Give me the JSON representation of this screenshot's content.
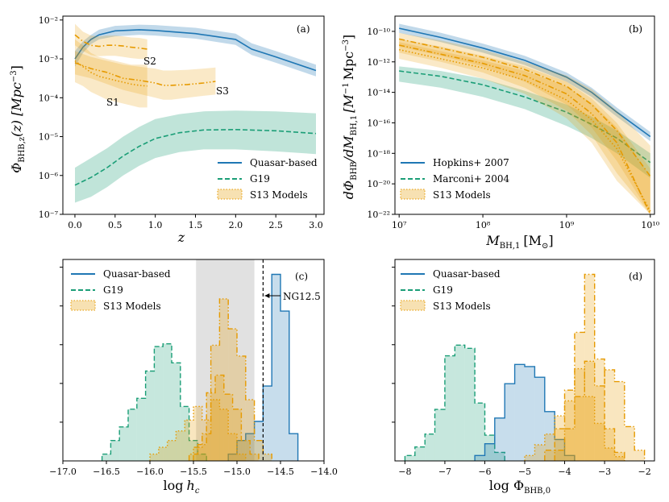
{
  "colors": {
    "blue": "#1f77b4",
    "green": "#1b9e77",
    "orange": "#e69a00",
    "gray": "#d9d9d9"
  },
  "chart_data": [
    {
      "id": "a",
      "type": "line",
      "panel_label": "(a)",
      "xlabel": "z",
      "ylabel": "Φ_BHB,z(z) [Mpc^-3]",
      "ylabel_main": "Φ",
      "ylabel_sub": "BHB,z",
      "ylabel_rest": "(z) [Mpc",
      "ylabel_sup": "−3",
      "ylabel_close": "]",
      "xlim": [
        -0.15,
        3.1
      ],
      "ylim_log10": [
        -7,
        -1.9
      ],
      "xticks": [
        0,
        0.5,
        1,
        1.5,
        2,
        2.5,
        3
      ],
      "xtick_labels": [
        "0.0",
        "0.5",
        "1.0",
        "1.5",
        "2.0",
        "2.5",
        "3.0"
      ],
      "yticks_log10": [
        -7,
        -6,
        -5,
        -4,
        -3,
        -2
      ],
      "ytick_labels": [
        "10⁻⁷",
        "10⁻⁶",
        "10⁻⁵",
        "10⁻⁴",
        "10⁻³",
        "10⁻²"
      ],
      "legend": [
        "Quasar-based",
        "G19",
        "S13 Models"
      ],
      "annotations": [
        "S1",
        "S2",
        "S3"
      ],
      "series": [
        {
          "name": "Quasar-based",
          "color": "blue",
          "dash": "solid",
          "x": [
            0,
            0.1,
            0.2,
            0.3,
            0.5,
            0.8,
            1.0,
            1.5,
            2.0,
            2.2,
            2.5,
            3.0
          ],
          "y_log10": [
            -3.0,
            -2.7,
            -2.5,
            -2.38,
            -2.28,
            -2.25,
            -2.27,
            -2.35,
            -2.5,
            -2.75,
            -2.95,
            -3.3
          ],
          "band_lo": [
            -3.2,
            -2.85,
            -2.62,
            -2.5,
            -2.42,
            -2.38,
            -2.4,
            -2.48,
            -2.64,
            -2.9,
            -3.1,
            -3.45
          ],
          "band_hi": [
            -2.8,
            -2.55,
            -2.38,
            -2.25,
            -2.15,
            -2.12,
            -2.13,
            -2.2,
            -2.35,
            -2.6,
            -2.8,
            -3.15
          ]
        },
        {
          "name": "G19",
          "color": "green",
          "dash": "dashed",
          "x": [
            0,
            0.2,
            0.4,
            0.6,
            0.8,
            1.0,
            1.3,
            1.6,
            2.0,
            2.5,
            3.0
          ],
          "y_log10": [
            -6.25,
            -6.05,
            -5.8,
            -5.5,
            -5.25,
            -5.05,
            -4.9,
            -4.83,
            -4.82,
            -4.85,
            -4.92
          ],
          "band_lo": [
            -6.7,
            -6.55,
            -6.3,
            -6.0,
            -5.75,
            -5.55,
            -5.4,
            -5.33,
            -5.33,
            -5.38,
            -5.45
          ],
          "band_hi": [
            -5.8,
            -5.55,
            -5.3,
            -5.0,
            -4.75,
            -4.55,
            -4.42,
            -4.35,
            -4.33,
            -4.35,
            -4.4
          ]
        },
        {
          "name": "S1",
          "color": "orange",
          "dash": "dotted",
          "x": [
            0,
            0.1,
            0.2,
            0.3,
            0.4,
            0.5,
            0.6,
            0.7,
            0.8,
            0.9
          ],
          "y_log10": [
            -3.05,
            -3.2,
            -3.35,
            -3.45,
            -3.5,
            -3.55,
            -3.6,
            -3.65,
            -3.68,
            -3.7
          ],
          "band_lo": [
            -3.6,
            -3.7,
            -3.85,
            -3.95,
            -4.05,
            -4.1,
            -4.15,
            -4.2,
            -4.25,
            -4.25
          ],
          "band_hi": [
            -2.5,
            -2.65,
            -2.85,
            -2.95,
            -3.0,
            -3.05,
            -3.1,
            -3.15,
            -3.15,
            -3.15
          ]
        },
        {
          "name": "S2",
          "color": "orange",
          "dash": "dashdot",
          "x": [
            0,
            0.1,
            0.2,
            0.3,
            0.4,
            0.5,
            0.6,
            0.7,
            0.8,
            0.9
          ],
          "y_log10": [
            -2.38,
            -2.55,
            -2.65,
            -2.68,
            -2.65,
            -2.65,
            -2.67,
            -2.7,
            -2.72,
            -2.75
          ],
          "band_lo": [
            -2.65,
            -2.8,
            -2.9,
            -2.93,
            -2.92,
            -2.92,
            -2.95,
            -2.98,
            -3.0,
            -3.0
          ],
          "band_hi": [
            -2.1,
            -2.3,
            -2.4,
            -2.42,
            -2.4,
            -2.4,
            -2.42,
            -2.45,
            -2.46,
            -2.5
          ]
        },
        {
          "name": "S3",
          "color": "orange",
          "dash": "dashdotdot",
          "x": [
            0,
            0.2,
            0.4,
            0.6,
            0.8,
            1.0,
            1.1,
            1.2,
            1.4,
            1.6,
            1.75
          ],
          "y_log10": [
            -3.1,
            -3.25,
            -3.35,
            -3.5,
            -3.55,
            -3.62,
            -3.68,
            -3.68,
            -3.66,
            -3.62,
            -3.58
          ],
          "band_lo": [
            -3.4,
            -3.5,
            -3.65,
            -3.8,
            -3.9,
            -4.0,
            -4.05,
            -4.05,
            -4.0,
            -3.95,
            -3.92
          ],
          "band_hi": [
            -2.8,
            -2.95,
            -3.05,
            -3.15,
            -3.2,
            -3.25,
            -3.3,
            -3.3,
            -3.28,
            -3.25,
            -3.22
          ]
        }
      ]
    },
    {
      "id": "b",
      "type": "line",
      "panel_label": "(b)",
      "xlabel": "M_BH,1 [M_⊙]",
      "ylabel": "dΦ_BHB / dM_BH,1 [M_⊙^-1 Mpc^-3]",
      "xlabel_main": "M",
      "xlabel_sub": "BH,1",
      "xlabel_rest": "[M",
      "xlabel_sun": "⊙",
      "xlabel_close": "]",
      "ylabel_main": "dΦ",
      "ylabel_sub": "BHB",
      "ylabel_mid": "/dM",
      "ylabel_sub2": "BH,1",
      "ylabel_rest": "[M",
      "ylabel_sup": "−1",
      "ylabel_rest2": "Mpc",
      "ylabel_sup2": "−3",
      "ylabel_close": "]",
      "xlim_log10": [
        6.95,
        10.05
      ],
      "ylim_log10": [
        -22,
        -9
      ],
      "xticks_log10": [
        7,
        8,
        9,
        10
      ],
      "xtick_labels": [
        "10⁷",
        "10⁸",
        "10⁹",
        "10¹⁰"
      ],
      "yticks_log10": [
        -22,
        -20,
        -18,
        -16,
        -14,
        -12,
        -10
      ],
      "ytick_labels": [
        "10⁻²²",
        "10⁻²⁰",
        "10⁻¹⁸",
        "10⁻¹⁶",
        "10⁻¹⁴",
        "10⁻¹²",
        "10⁻¹⁰"
      ],
      "legend": [
        "Hopkins+ 2007",
        "Marconi+ 2004",
        "S13 Models"
      ],
      "series": [
        {
          "name": "Hopkins+ 2007",
          "color": "blue",
          "dash": "solid",
          "x_log10": [
            7,
            7.5,
            8,
            8.5,
            9,
            9.3,
            9.6,
            10
          ],
          "y_log10": [
            -9.8,
            -10.4,
            -11.1,
            -11.9,
            -13.0,
            -14.0,
            -15.3,
            -16.9
          ],
          "band_lo": [
            -10.1,
            -10.7,
            -11.4,
            -12.2,
            -13.3,
            -14.3,
            -15.6,
            -17.2
          ],
          "band_hi": [
            -9.5,
            -10.1,
            -10.8,
            -11.6,
            -12.7,
            -13.7,
            -15.0,
            -16.6
          ]
        },
        {
          "name": "Marconi+ 2004",
          "color": "green",
          "dash": "dashed",
          "x_log10": [
            7,
            7.5,
            8,
            8.5,
            9,
            9.3,
            9.6,
            10
          ],
          "y_log10": [
            -12.6,
            -12.95,
            -13.5,
            -14.3,
            -15.3,
            -16.1,
            -17.0,
            -18.6
          ],
          "band_lo": [
            -13.3,
            -13.7,
            -14.3,
            -15.1,
            -16.2,
            -17.0,
            -18.0,
            -19.6
          ],
          "band_hi": [
            -12.3,
            -12.6,
            -13.1,
            -13.9,
            -14.8,
            -15.6,
            -16.5,
            -18.0
          ]
        },
        {
          "name": "S13 dashdot",
          "color": "orange",
          "dash": "dashdot",
          "x_log10": [
            7,
            7.5,
            8,
            8.5,
            9,
            9.3,
            9.6,
            10
          ],
          "y_log10": [
            -10.5,
            -11.1,
            -11.7,
            -12.5,
            -13.6,
            -14.8,
            -16.5,
            -19.5
          ],
          "band_lo": [
            -11.0,
            -11.6,
            -12.3,
            -13.3,
            -14.8,
            -16.3,
            -18.5,
            -22.0
          ],
          "band_hi": [
            -10.1,
            -10.6,
            -11.2,
            -12.0,
            -12.9,
            -13.8,
            -15.2,
            -17.5
          ]
        },
        {
          "name": "S13 dotted",
          "color": "orange",
          "dash": "dotted",
          "x_log10": [
            7,
            7.5,
            8,
            8.5,
            9,
            9.3,
            9.6,
            10
          ],
          "y_log10": [
            -11.2,
            -11.8,
            -12.4,
            -13.2,
            -14.5,
            -15.8,
            -17.7,
            -21.8
          ],
          "band_lo": [
            -11.8,
            -12.4,
            -13.1,
            -14.1,
            -15.7,
            -17.3,
            -19.8,
            -22.0
          ],
          "band_hi": [
            -10.7,
            -11.3,
            -11.9,
            -12.6,
            -13.6,
            -14.7,
            -16.3,
            -19.5
          ]
        },
        {
          "name": "S13 dashdotdot",
          "color": "orange",
          "dash": "dashdotdot",
          "x_log10": [
            7,
            7.5,
            8,
            8.5,
            9,
            9.3,
            9.6,
            10
          ],
          "y_log10": [
            -10.9,
            -11.5,
            -12.1,
            -12.9,
            -14.1,
            -15.4,
            -17.3,
            -22.0
          ],
          "band_lo": [
            -11.4,
            -12.0,
            -12.7,
            -13.7,
            -15.2,
            -16.8,
            -19.3,
            -22.0
          ],
          "band_hi": [
            -10.5,
            -11.0,
            -11.6,
            -12.3,
            -13.3,
            -14.4,
            -16.0,
            -19.0
          ]
        }
      ]
    },
    {
      "id": "c",
      "type": "histogram",
      "panel_label": "(c)",
      "xlabel": "log h_c",
      "xlabel_main": "log",
      "xlabel_var": "h",
      "xlabel_sub": "c",
      "xlim": [
        -17.0,
        -14.0
      ],
      "xticks": [
        -17.0,
        -16.5,
        -16.0,
        -15.5,
        -15.0,
        -14.5,
        -14.0
      ],
      "xtick_labels": [
        "−17.0",
        "−16.5",
        "−16.0",
        "−15.5",
        "−15.0",
        "−14.5",
        "−14.0"
      ],
      "shaded_region": [
        -15.47,
        -14.8
      ],
      "vline": -14.7,
      "vline_label": "NG12.5",
      "legend": [
        "Quasar-based",
        "G19",
        "S13 Models"
      ],
      "series": [
        {
          "name": "G19",
          "color": "green",
          "dash": "dashed",
          "bin_start": -16.55,
          "bin_width": 0.1,
          "counts": [
            0.05,
            0.15,
            0.25,
            0.38,
            0.46,
            0.66,
            0.84,
            0.86,
            0.72,
            0.4,
            0.15,
            0.05
          ]
        },
        {
          "name": "Quasar-based",
          "color": "blue",
          "dash": "solid",
          "bin_start": -15.1,
          "bin_width": 0.1,
          "counts": [
            0.05,
            0.15,
            0.2,
            0.29,
            0.55,
            1.37,
            1.1,
            0.2
          ]
        },
        {
          "name": "S13 dotted",
          "color": "orange",
          "dash": "dotted",
          "bin_start": -16.0,
          "bin_width": 0.1,
          "counts": [
            0.05,
            0.1,
            0.15,
            0.22,
            0.3,
            0.4,
            0.3,
            0.45,
            0.38,
            0.2,
            0.05
          ]
        },
        {
          "name": "S13 dashdot",
          "color": "orange",
          "dash": "dashdot",
          "bin_start": -15.55,
          "bin_width": 0.1,
          "counts": [
            0.05,
            0.12,
            0.5,
            0.63,
            0.49,
            0.38,
            0.15,
            0.05
          ]
        },
        {
          "name": "S13 dashdotdot",
          "color": "orange",
          "dash": "dashdotdot",
          "bin_start": -15.5,
          "bin_width": 0.1,
          "counts": [
            0.1,
            0.2,
            0.85,
            1.19,
            0.97,
            0.77,
            0.45,
            0.15,
            0.05
          ]
        }
      ]
    },
    {
      "id": "d",
      "type": "histogram",
      "panel_label": "(d)",
      "xlabel": "log Φ_BHB,0",
      "xlabel_main": "log Φ",
      "xlabel_sub": "BHB,0",
      "xlim": [
        -8.25,
        -1.75
      ],
      "xticks": [
        -8,
        -7,
        -6,
        -5,
        -4,
        -3,
        -2
      ],
      "xtick_labels": [
        "−8",
        "−7",
        "−6",
        "−5",
        "−4",
        "−3",
        "−2"
      ],
      "legend": [
        "Quasar-based",
        "G19",
        "S13 Models"
      ],
      "series": [
        {
          "name": "G19",
          "color": "green",
          "dash": "dashed",
          "bin_start": -8.0,
          "bin_width": 0.25,
          "counts": [
            0.05,
            0.13,
            0.25,
            0.48,
            0.98,
            1.08,
            1.05,
            0.54,
            0.24,
            0.08
          ]
        },
        {
          "name": "Quasar-based",
          "color": "blue",
          "dash": "solid",
          "bin_start": -6.25,
          "bin_width": 0.25,
          "counts": [
            0.05,
            0.16,
            0.4,
            0.72,
            0.9,
            0.88,
            0.78,
            0.46,
            0.2,
            0.05
          ]
        },
        {
          "name": "S13 dotted",
          "color": "orange",
          "dash": "dotted",
          "bin_start": -5.0,
          "bin_width": 0.25,
          "counts": [
            0.05,
            0.15,
            0.25,
            0.42,
            0.56,
            0.86,
            0.6,
            0.35,
            0.12,
            0.04
          ]
        },
        {
          "name": "S13 dashdot",
          "color": "orange",
          "dash": "dashdot",
          "bin_start": -4.5,
          "bin_width": 0.25,
          "counts": [
            0.1,
            0.3,
            0.66,
            1.2,
            1.74,
            0.95,
            0.3,
            0.08
          ]
        },
        {
          "name": "S13 dashdotdot",
          "color": "orange",
          "dash": "dashdotdot",
          "bin_start": -4.25,
          "bin_width": 0.25,
          "counts": [
            0.1,
            0.3,
            0.6,
            0.93,
            0.7,
            0.85,
            0.74,
            0.32,
            0.1
          ]
        }
      ]
    }
  ]
}
